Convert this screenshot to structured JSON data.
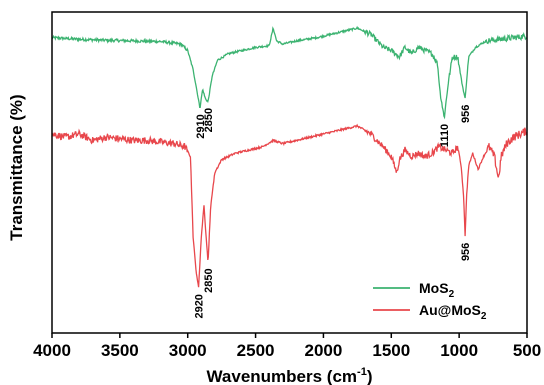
{
  "chart_data": {
    "type": "line",
    "xlabel_main": "Wavenumbers (cm",
    "xlabel_sup": "-1",
    "xlabel_end": ")",
    "ylabel": "Transmittance (%)",
    "xlim": [
      4000,
      500
    ],
    "x_reversed": true,
    "ylim": [
      0,
      100
    ],
    "x_ticks": [
      "4000",
      "3500",
      "3000",
      "2500",
      "2000",
      "1500",
      "1000",
      "500"
    ],
    "y_ticks_shown": false,
    "legend_position": "bottom-right",
    "series": [
      {
        "name_base": "MoS",
        "name_sub": "2",
        "name_end": "",
        "color": "#3cb371",
        "points": [
          [
            4000,
            92.0
          ],
          [
            3800,
            91.5
          ],
          [
            3600,
            91.2
          ],
          [
            3400,
            91.0
          ],
          [
            3200,
            90.8
          ],
          [
            3050,
            90.0
          ],
          [
            3000,
            88.0
          ],
          [
            2960,
            82.0
          ],
          [
            2930,
            75.0
          ],
          [
            2910,
            70.0
          ],
          [
            2890,
            76.0
          ],
          [
            2870,
            73.0
          ],
          [
            2850,
            72.0
          ],
          [
            2820,
            80.0
          ],
          [
            2780,
            85.0
          ],
          [
            2700,
            87.0
          ],
          [
            2600,
            88.0
          ],
          [
            2500,
            89.0
          ],
          [
            2400,
            89.5
          ],
          [
            2370,
            95.0
          ],
          [
            2345,
            91.0
          ],
          [
            2300,
            90.0
          ],
          [
            2200,
            91.0
          ],
          [
            2050,
            92.0
          ],
          [
            1900,
            93.5
          ],
          [
            1750,
            95.0
          ],
          [
            1650,
            93.0
          ],
          [
            1560,
            89.0
          ],
          [
            1500,
            88.0
          ],
          [
            1440,
            86.0
          ],
          [
            1400,
            89.0
          ],
          [
            1350,
            87.0
          ],
          [
            1300,
            89.0
          ],
          [
            1250,
            88.0
          ],
          [
            1200,
            87.0
          ],
          [
            1160,
            84.0
          ],
          [
            1140,
            75.0
          ],
          [
            1110,
            67.0
          ],
          [
            1080,
            78.0
          ],
          [
            1050,
            86.0
          ],
          [
            1010,
            86.0
          ],
          [
            980,
            78.0
          ],
          [
            956,
            73.0
          ],
          [
            930,
            86.0
          ],
          [
            880,
            89.0
          ],
          [
            800,
            91.0
          ],
          [
            700,
            91.5
          ],
          [
            600,
            92.0
          ],
          [
            500,
            92.5
          ]
        ],
        "peak_labels": [
          {
            "x": 2910,
            "text": "2910"
          },
          {
            "x": 2850,
            "text": "2850"
          },
          {
            "x": 1110,
            "text": "1110"
          },
          {
            "x": 956,
            "text": "956"
          }
        ]
      },
      {
        "name_base": "Au@MoS",
        "name_sub": "2",
        "name_end": "",
        "color": "#e8474c",
        "points": [
          [
            4000,
            62.0
          ],
          [
            3900,
            61.0
          ],
          [
            3800,
            62.0
          ],
          [
            3700,
            60.0
          ],
          [
            3600,
            61.0
          ],
          [
            3500,
            60.5
          ],
          [
            3400,
            60.0
          ],
          [
            3300,
            60.0
          ],
          [
            3200,
            59.5
          ],
          [
            3100,
            59.0
          ],
          [
            3020,
            58.0
          ],
          [
            2980,
            55.0
          ],
          [
            2960,
            30.0
          ],
          [
            2940,
            20.0
          ],
          [
            2920,
            14.0
          ],
          [
            2900,
            30.0
          ],
          [
            2880,
            40.0
          ],
          [
            2865,
            30.0
          ],
          [
            2850,
            22.0
          ],
          [
            2830,
            40.0
          ],
          [
            2800,
            50.0
          ],
          [
            2750,
            54.0
          ],
          [
            2650,
            56.0
          ],
          [
            2550,
            57.0
          ],
          [
            2450,
            58.0
          ],
          [
            2370,
            60.0
          ],
          [
            2300,
            59.0
          ],
          [
            2200,
            60.0
          ],
          [
            2100,
            61.0
          ],
          [
            2000,
            62.0
          ],
          [
            1900,
            63.0
          ],
          [
            1800,
            64.0
          ],
          [
            1750,
            64.5
          ],
          [
            1650,
            62.0
          ],
          [
            1560,
            58.0
          ],
          [
            1500,
            55.0
          ],
          [
            1460,
            50.0
          ],
          [
            1440,
            54.0
          ],
          [
            1400,
            57.0
          ],
          [
            1350,
            55.0
          ],
          [
            1300,
            56.0
          ],
          [
            1250,
            55.0
          ],
          [
            1200,
            56.0
          ],
          [
            1150,
            58.0
          ],
          [
            1100,
            57.0
          ],
          [
            1050,
            56.0
          ],
          [
            1010,
            58.0
          ],
          [
            985,
            52.0
          ],
          [
            966,
            42.0
          ],
          [
            956,
            30.0
          ],
          [
            946,
            42.0
          ],
          [
            930,
            52.0
          ],
          [
            900,
            56.0
          ],
          [
            860,
            51.0
          ],
          [
            820,
            55.0
          ],
          [
            780,
            58.0
          ],
          [
            740,
            55.0
          ],
          [
            710,
            48.0
          ],
          [
            690,
            55.0
          ],
          [
            650,
            59.0
          ],
          [
            600,
            61.0
          ],
          [
            550,
            62.0
          ],
          [
            500,
            63.0
          ]
        ],
        "peak_labels": [
          {
            "x": 2920,
            "text": "2920"
          },
          {
            "x": 2850,
            "text": "2850"
          },
          {
            "x": 956,
            "text": "956"
          }
        ]
      }
    ]
  }
}
